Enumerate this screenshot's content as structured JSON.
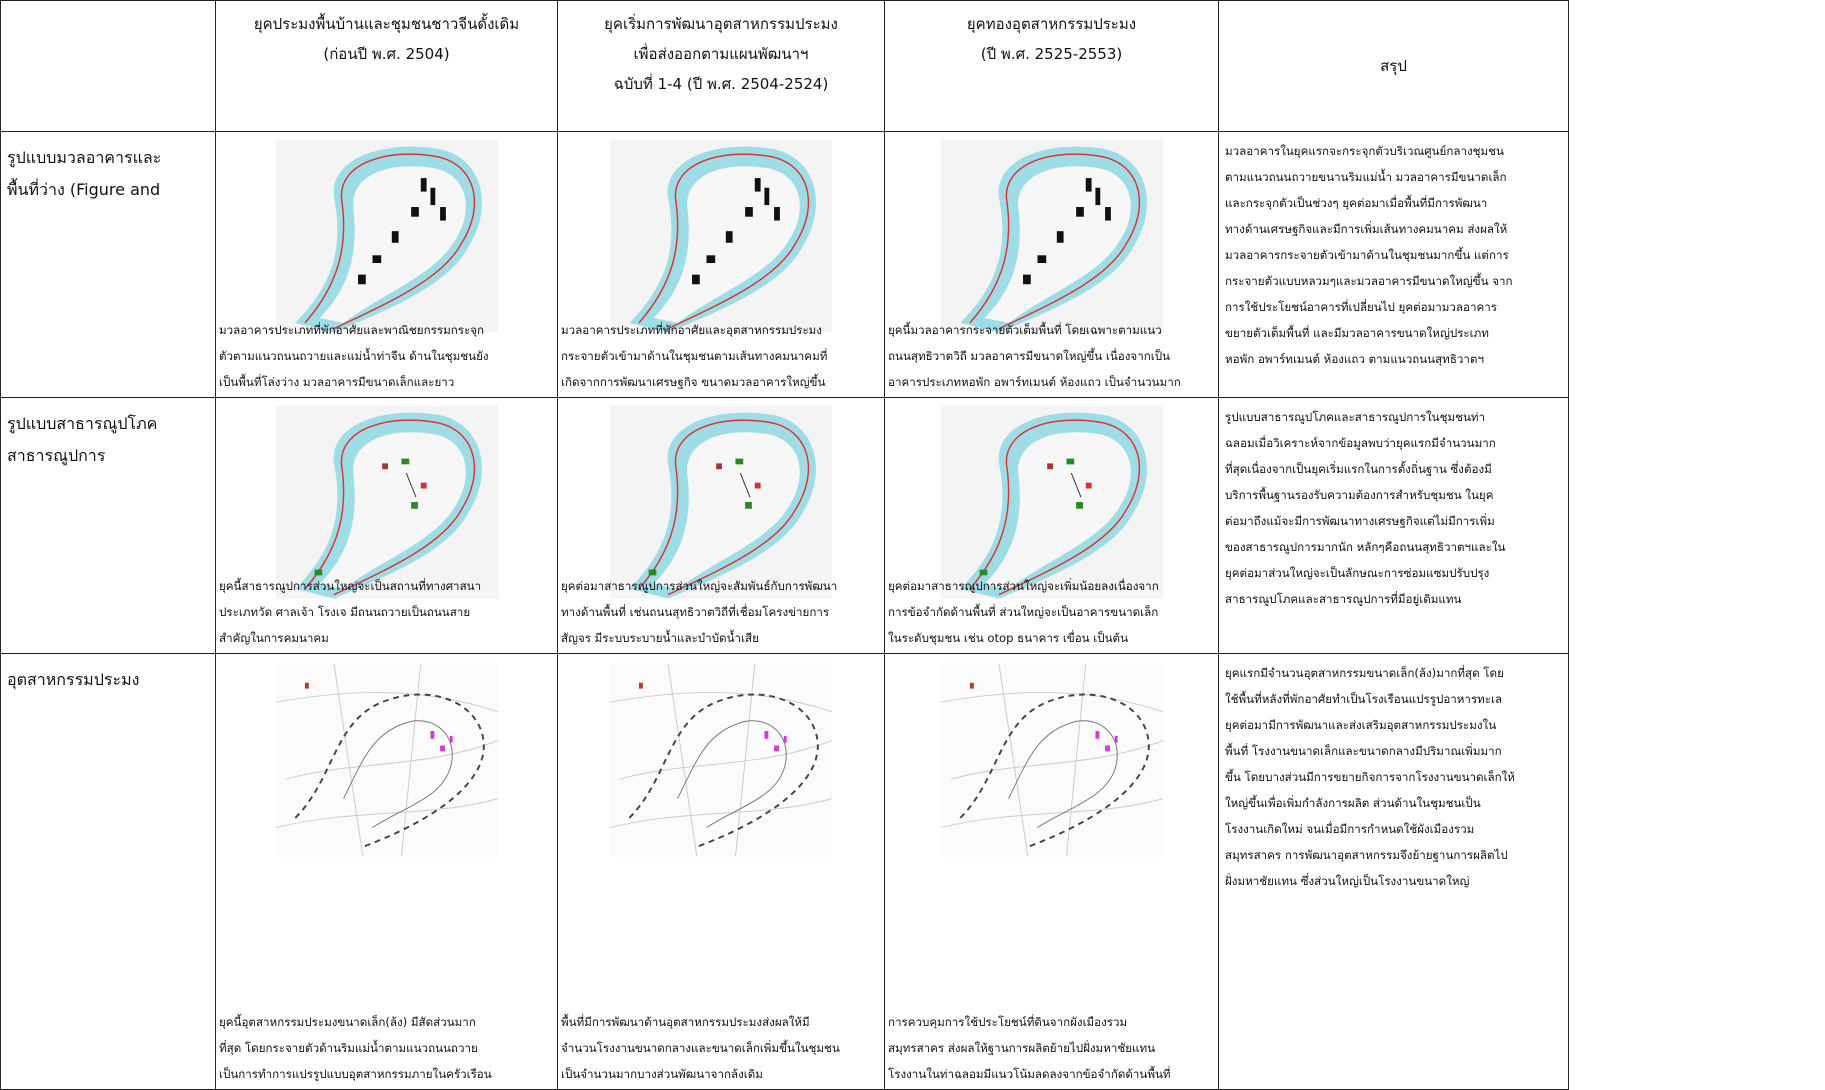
{
  "header": {
    "columns": [
      [
        "ยุคประมงพื้นบ้านและชุมชนชาวจีนดั้งเดิม",
        "(ก่อนปี พ.ศ. 2504)"
      ],
      [
        "ยุคเริ่มการพัฒนาอุตสาหกรรมประมง",
        "เพื่อส่งออกตามแผนพัฒนาฯ",
        "ฉบับที่ 1-4 (ปี พ.ศ. 2504-2524)"
      ],
      [
        "ยุคทองอุตสาหกรรมประมง",
        "(ปี พ.ศ. 2525-2553)"
      ],
      [
        "สรุป"
      ]
    ]
  },
  "rows": [
    {
      "label": [
        "รูปแบบมวลอาคารและ",
        "พื้นที่ว่าง (Figure and"
      ],
      "captions": [
        [
          "มวลอาคารประเภทที่พักอาศัยและพาณิชยกรรมกระจุก",
          "ตัวตามแนวถนนถวายและแม่น้ำท่าจีน ด้านในชุมชนยัง",
          "เป็นพื้นที่โล่งว่าง มวลอาคารมีขนาดเล็กและยาว"
        ],
        [
          "มวลอาคารประเภทที่พักอาศัยและอุตสาหกรรมประมง",
          "กระจายตัวเข้ามาด้านในชุมชนตามเส้นทางคมนาคมที่",
          "เกิดจากการพัฒนาเศรษฐกิจ ขนาดมวลอาคารใหญ่ขึ้น"
        ],
        [
          "ยุคนี้มวลอาคารกระจายตัวเต็มพื้นที่ โดยเฉพาะตามแนว",
          "ถนนสุทธิวาตวิถี มวลอาคารมีขนาดใหญ่ขึ้น เนื่องจากเป็น",
          "อาคารประเภทหอพัก อพาร์ทเมนต์ ห้องแถว เป็นจำนวนมาก"
        ]
      ],
      "summary": [
        "มวลอาคารในยุคแรกจะกระจุกตัวบริเวณศูนย์กลางชุมชน",
        "ตามแนวถนนถวายขนานริมแม่น้ำ มวลอาคารมีขนาดเล็ก",
        "และกระจุกตัวเป็นช่วงๆ ยุคต่อมาเมื่อพื้นที่มีการพัฒนา",
        "ทางด้านเศรษฐกิจและมีการเพิ่มเส้นทางคมนาคม ส่งผลให้",
        "มวลอาคารกระจายตัวเข้ามาด้านในชุมชนมากขึ้น แต่การ",
        "กระจายตัวแบบหลวมๆและมวลอาคารมีขนาดใหญ่ขึ้น จาก",
        "การใช้ประโยชน์อาคารที่เปลี่ยนไป ยุคต่อมามวลอาคาร",
        "ขยายตัวเต็มพื้นที่ และมีมวลอาคารขนาดใหญ่ประเภท",
        "หอพัก อพาร์ทเมนต์ ห้องแถว ตามแนวถนนสุทธิวาตฯ"
      ]
    },
    {
      "label": [
        "รูปแบบสาธารณูปโภค",
        "สาธารณูปการ"
      ],
      "captions": [
        [
          "ยุคนี้สาธารณูปการส่วนใหญ่จะเป็นสถานที่ทางศาสนา",
          "ประเภทวัด ศาลเจ้า โรงเจ มีถนนถวายเป็นถนนสาย",
          "สำคัญในการคมนาคม"
        ],
        [
          "ยุคต่อมาสาธารณูปการส่วนใหญ่จะสัมพันธ์กับการพัฒนา",
          "ทางด้านพื้นที่ เช่นถนนสุทธิวาตวิถีที่เชื่อมโครงข่ายการ",
          "สัญจร มีระบบระบายน้ำและบำบัดน้ำเสีย"
        ],
        [
          "ยุคต่อมาสาธารณูปการส่วนใหญ่จะเพิ่มน้อยลงเนื่องจาก",
          "การข้อจำกัดด้านพื้นที่ ส่วนใหญ่จะเป็นอาคารขนาดเล็ก",
          "ในระดับชุมชน เช่น otop ธนาคาร เขื่อน เป็นต้น"
        ]
      ],
      "summary": [
        "รูปแบบสาธารณูปโภคและสาธารณูปการในชุมชนท่า",
        "ฉลอมเมื่อวิเคราะห์จากข้อมูลพบว่ายุคแรกมีจำนวนมาก",
        "ที่สุดเนื่องจากเป็นยุคเริ่มแรกในการตั้งถิ่นฐาน ซึ่งต้องมี",
        "บริการพื้นฐานรองรับความต้องการสำหรับชุมชน ในยุค",
        "ต่อมาถึงแม้จะมีการพัฒนาทางเศรษฐกิจแต่ไม่มีการเพิ่ม",
        "ของสาธารณูปการมากนัก หลักๆคือถนนสุทธิวาตฯและใน",
        "ยุคต่อมาส่วนใหญ่จะเป็นลักษณะการซ่อมแซมปรับปรุง",
        "สาธารณูปโภคและสาธารณูปการที่มีอยู่เดิมแทน"
      ]
    },
    {
      "label": [
        "อุตสาหกรรมประมง"
      ],
      "captions": [
        [
          "ยุคนี้อุตสาหกรรมประมงขนาดเล็ก(ล้ง) มีสัดส่วนมาก",
          "ที่สุด โดยกระจายตัวด้านริมแม่น้ำตามแนวถนนถวาย",
          "เป็นการทำการแปรรูปแบบอุตสาหกรรมภายในครัวเรือน"
        ],
        [
          "พื้นที่มีการพัฒนาด้านอุตสาหกรรมประมงส่งผลให้มี",
          "จำนวนโรงงานขนาดกลางและขนาดเล็กเพิ่มขึ้นในชุมชน",
          "เป็นจำนวนมากบางส่วนพัฒนาจากล้งเดิม"
        ],
        [
          "การควบคุมการใช้ประโยชน์ที่ดินจากผังเมืองรวม",
          "สมุทรสาคร ส่งผลให้ฐานการผลิตย้ายไปฝั่งมหาชัยแทน",
          "โรงงานในท่าฉลอมมีแนวโน้มลดลงจากข้อจำกัดด้านพื้นที่"
        ]
      ],
      "summary": [
        "ยุคแรกมีจำนวนอุตสาหกรรมขนาดเล็ก(ล้ง)มากที่สุด โดย",
        "ใช้พื้นที่หลังที่พักอาศัยทำเป็นโรงเรือนแปรรูปอาหารทะเล",
        "ยุคต่อมามีการพัฒนาและส่งเสริมอุตสาหกรรมประมงใน",
        "พื้นที่ โรงงานขนาดเล็กและขนาดกลางมีปริมาณเพิ่มมาก",
        "ขึ้น โดยบางส่วนมีการขยายกิจการจากโรงงานขนาดเล็กให้",
        "ใหญ่ขึ้นเพื่อเพิ่มกำลังการผลิต ส่วนด้านในชุมชนเป็น",
        "โรงงานเกิดใหม่ จนเมื่อมีการกำหนดใช้ผังเมืองรวม",
        "สมุทรสาคร การพัฒนาอุตสาหกรรมจึงย้ายฐานการผลิตไป",
        "ฝั่งมหาชัยแทน ซึ่งส่วนใหญ่เป็นโรงงานขนาดใหญ่"
      ]
    }
  ]
}
